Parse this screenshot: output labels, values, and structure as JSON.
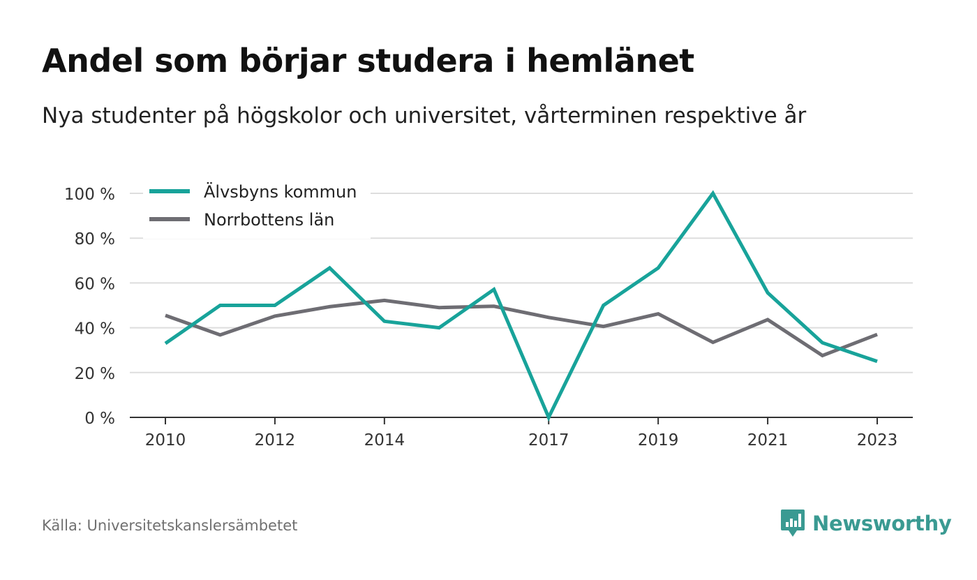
{
  "header": {
    "title": "Andel som börjar studera i hemlänet",
    "subtitle": "Nya studenter på högskolor och universitet, vårterminen respektive år"
  },
  "footer": {
    "source": "Källa: Universitetskanslersämbetet",
    "brand": "Newsworthy",
    "brand_icon": "newsworthy-logo-icon"
  },
  "colors": {
    "series_1": "#18a39a",
    "series_2": "#6e6d73",
    "grid": "#dddddd",
    "axis": "#333333",
    "brand": "#3a9a92"
  },
  "chart_data": {
    "type": "line",
    "x": [
      2010,
      2011,
      2012,
      2013,
      2014,
      2015,
      2016,
      2017,
      2018,
      2019,
      2020,
      2021,
      2022,
      2023
    ],
    "x_tick_labels": [
      "2010",
      "2012",
      "2014",
      "2017",
      "2019",
      "2021",
      "2023"
    ],
    "x_tick_values": [
      2010,
      2012,
      2014,
      2017,
      2019,
      2021,
      2023
    ],
    "y_tick_labels": [
      "0 %",
      "20 %",
      "40 %",
      "60 %",
      "80 %",
      "100 %"
    ],
    "y_tick_values": [
      0,
      20,
      40,
      60,
      80,
      100
    ],
    "ylim": [
      0,
      100
    ],
    "xlim": [
      2009.35,
      2023.65
    ],
    "grid": true,
    "legend_position": "top-left",
    "series": [
      {
        "name": "Älvsbyns kommun",
        "values": [
          33,
          50,
          50,
          66.7,
          42.9,
          40,
          57.1,
          0,
          50,
          66.7,
          100,
          55.6,
          33.3,
          25
        ]
      },
      {
        "name": "Norrbottens län",
        "values": [
          45.5,
          36.8,
          45.2,
          49.4,
          52.2,
          49,
          49.6,
          44.6,
          40.6,
          46.2,
          33.5,
          43.6,
          27.6,
          37
        ]
      }
    ]
  }
}
